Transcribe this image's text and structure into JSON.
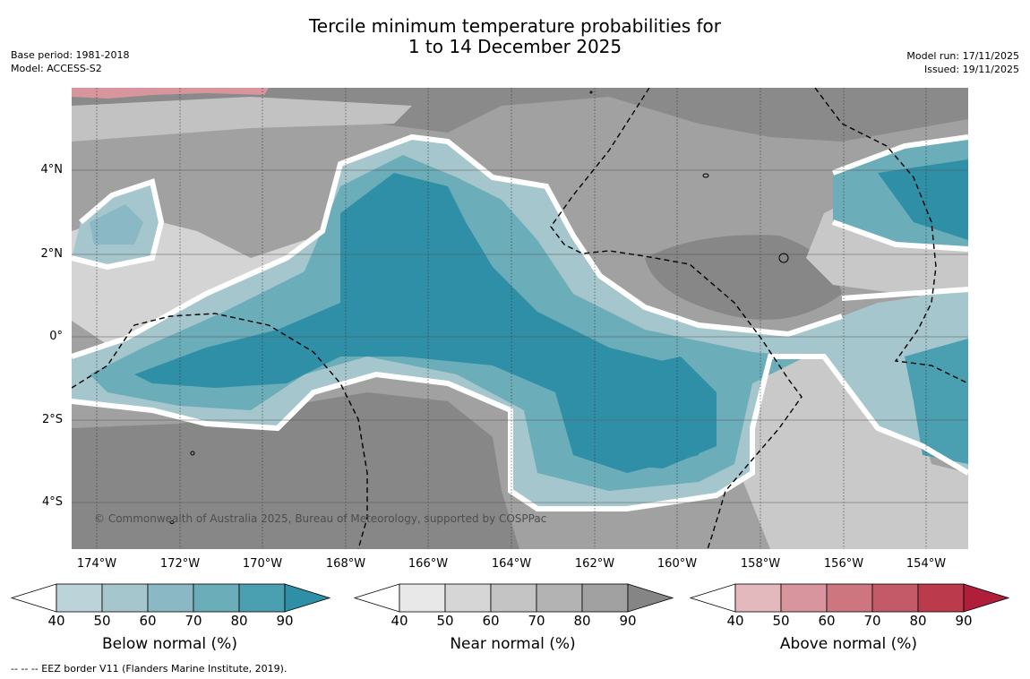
{
  "title": {
    "line1": "Tercile minimum temperature probabilities for",
    "line2": "1 to 14 December 2025"
  },
  "meta_left": {
    "base_period": "Base period: 1981-2018",
    "model": "Model: ACCESS-S2"
  },
  "meta_right": {
    "model_run": "Model run: 17/11/2025",
    "issued": "Issued: 19/11/2025"
  },
  "map": {
    "latitude_labels": [
      "4°N",
      "2°N",
      "0°",
      "2°S",
      "4°S"
    ],
    "longitude_labels": [
      "174°W",
      "172°W",
      "170°W",
      "168°W",
      "166°W",
      "164°W",
      "162°W",
      "160°W",
      "158°W",
      "156°W",
      "154°W"
    ],
    "credit": "© Commonwealth of Australia 2025, Bureau of Meteorology, supported by COSPPac"
  },
  "colorbars": [
    {
      "label": "Below normal (%)",
      "ticks": [
        "40",
        "50",
        "60",
        "70",
        "80",
        "90"
      ],
      "colors": [
        "#ffffff",
        "#bcd3d9",
        "#a5c6cc",
        "#8ab8c4",
        "#6badb8",
        "#4a9fb0",
        "#2e8fa6"
      ]
    },
    {
      "label": "Near normal (%)",
      "ticks": [
        "40",
        "50",
        "60",
        "70",
        "80",
        "90"
      ],
      "colors": [
        "#ffffff",
        "#e8e8e8",
        "#d6d6d6",
        "#c4c4c4",
        "#b3b3b3",
        "#a1a1a1",
        "#858585"
      ]
    },
    {
      "label": "Above normal (%)",
      "ticks": [
        "40",
        "50",
        "60",
        "70",
        "80",
        "90"
      ],
      "colors": [
        "#ffffff",
        "#e3b9be",
        "#d8959d",
        "#cd7680",
        "#c45a67",
        "#bb3a4c",
        "#b01e3a"
      ]
    }
  ],
  "footnote": "--  --  -- EEZ border V11 (Flanders Marine Institute, 2019)."
}
